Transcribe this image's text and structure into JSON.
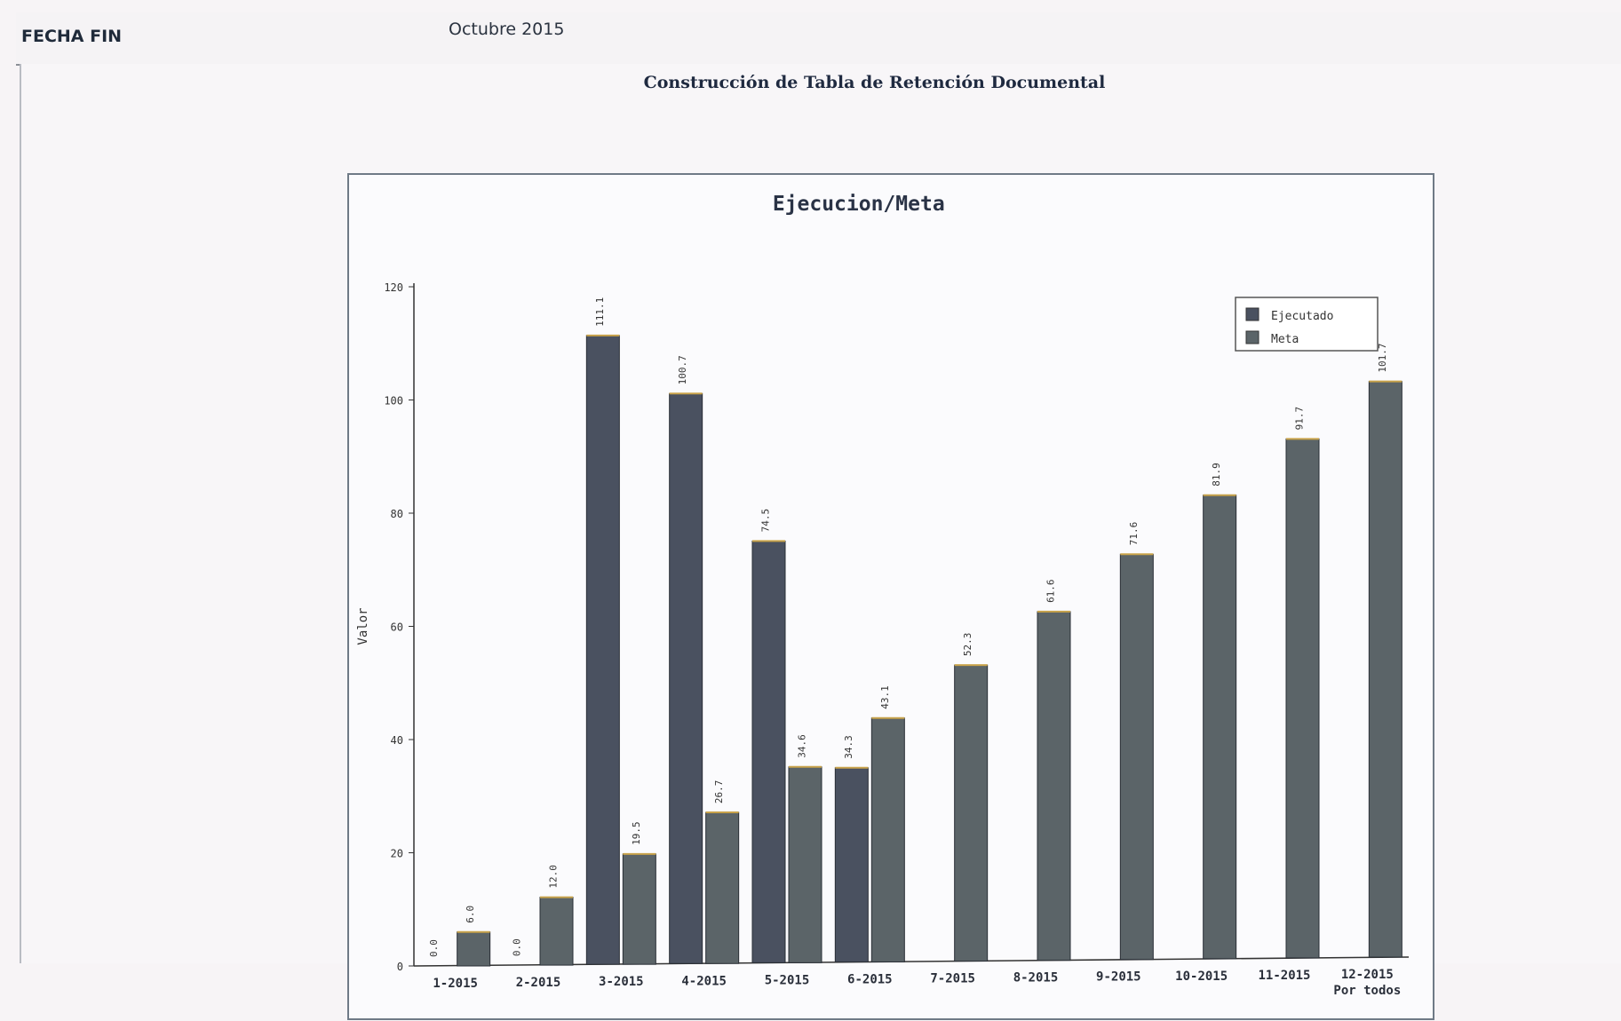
{
  "header": {
    "field_label": "FECHA FIN",
    "field_value": "Octubre 2015"
  },
  "section": {
    "title": "Construcción de Tabla de Retención Documental"
  },
  "colors": {
    "ejecutado": "#4a5160",
    "meta": "#5b6468"
  },
  "chart_data": {
    "type": "bar",
    "title": "Ejecucion/Meta",
    "ylabel": "Valor",
    "xlabel": "",
    "ylim": [
      0,
      120
    ],
    "yticks": [
      0,
      20,
      40,
      60,
      80,
      100,
      120
    ],
    "categories": [
      "1-2015",
      "2-2015",
      "3-2015",
      "4-2015",
      "5-2015",
      "6-2015",
      "7-2015",
      "8-2015",
      "9-2015",
      "10-2015",
      "11-2015",
      "12-2015\nPor todos"
    ],
    "series": [
      {
        "name": "Ejecutado",
        "values": [
          0.0,
          0.0,
          111.1,
          100.7,
          74.5,
          34.3,
          null,
          null,
          null,
          null,
          null,
          null
        ],
        "labels": [
          "0.0",
          "0.0",
          "111.1",
          "100.7",
          "74.5",
          "34.3",
          "",
          "",
          "",
          "",
          "",
          ""
        ]
      },
      {
        "name": "Meta",
        "values": [
          6.0,
          12.0,
          19.5,
          26.7,
          34.6,
          43.1,
          52.3,
          61.6,
          71.6,
          81.9,
          91.7,
          101.7
        ],
        "labels": [
          "6.0",
          "12.0",
          "19.5",
          "26.7",
          "34.6",
          "43.1",
          "52.3",
          "61.6",
          "71.6",
          "81.9",
          "91.7",
          "101.7"
        ]
      }
    ],
    "legend": {
      "position": "top-right"
    },
    "grid": false
  }
}
